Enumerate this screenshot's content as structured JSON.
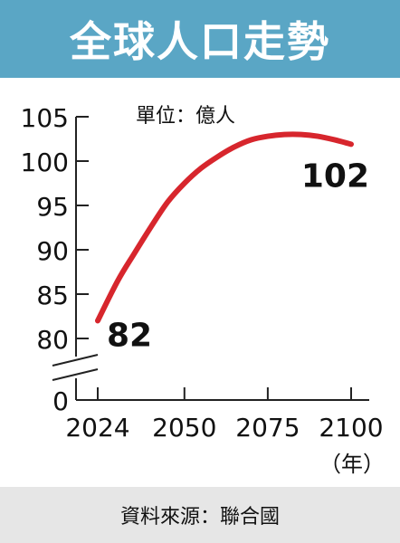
{
  "header": {
    "title": "全球人口走勢"
  },
  "footer": {
    "source": "資料來源：聯合國"
  },
  "colors": {
    "header_bg": "#5aa6c5",
    "line": "#d7262d",
    "footer_bg": "#e6e6e6"
  },
  "chart_data": {
    "type": "line",
    "title": "全球人口走勢",
    "unit_label": "單位：億人",
    "xlabel": "（年）",
    "ylabel": "",
    "x_ticks": [
      "2024",
      "2050",
      "2075",
      "2100"
    ],
    "y_ticks": [
      "0",
      "80",
      "85",
      "90",
      "95",
      "100",
      "105"
    ],
    "ylim": [
      80,
      105
    ],
    "y_axis_break": true,
    "xlim": [
      2024,
      2100
    ],
    "grid": false,
    "series": [
      {
        "x": [
          2024,
          2030,
          2035,
          2040,
          2045,
          2050,
          2055,
          2060,
          2065,
          2070,
          2075,
          2080,
          2085,
          2090,
          2095,
          2100
        ],
        "values": [
          82,
          86.5,
          89.6,
          92.6,
          95.4,
          97.5,
          99.2,
          100.5,
          101.6,
          102.4,
          102.8,
          103.0,
          103.0,
          102.8,
          102.4,
          101.9
        ]
      }
    ],
    "annotations": [
      {
        "x": 2024,
        "text": "82"
      },
      {
        "x": 2100,
        "text": "102"
      }
    ]
  }
}
